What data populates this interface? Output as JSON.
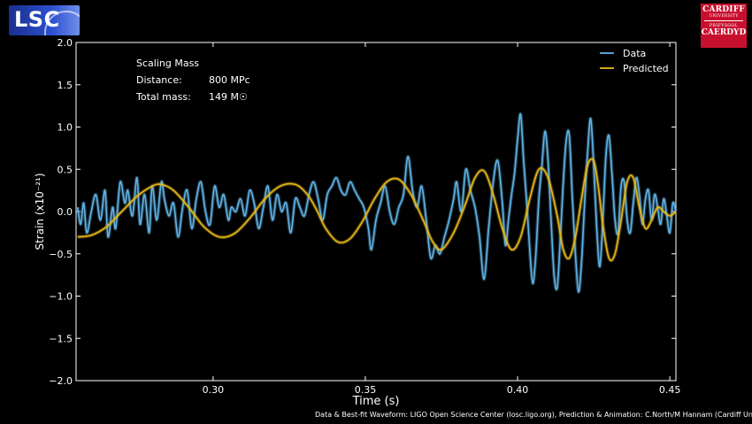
{
  "logos": {
    "lsc_text": "LSC",
    "cardiff_line1": "CARDIFF",
    "cardiff_line2": "UNIVERSITY",
    "cardiff_line3": "PRIFYSGOL",
    "cardiff_line4": "CAERDYD"
  },
  "annotation": {
    "title": "Scaling Mass",
    "distance_label": "Distance:",
    "distance_value": "800 MPc",
    "mass_label": "Total mass:",
    "mass_value": "149 M☉"
  },
  "credit": "Data & Best-fit Waveform: LIGO Open Science Center (losc.ligo.org), Prediction & Animation: C.North/M Hannam (Cardiff University)",
  "chart_data": {
    "type": "line",
    "xlabel": "Time (s)",
    "ylabel": "Strain (x10⁻²¹)",
    "xlim": [
      0.255,
      0.452
    ],
    "ylim": [
      -2.0,
      2.0
    ],
    "xticks": [
      0.3,
      0.35,
      0.4,
      0.45
    ],
    "xtick_labels": [
      "0.30",
      "0.35",
      "0.40",
      "0.45"
    ],
    "yticks": [
      2.0,
      1.5,
      1.0,
      0.5,
      0.0,
      -0.5,
      -1.0,
      -1.5,
      -2.0
    ],
    "ytick_labels": [
      "2.0",
      "1.5",
      "1.0",
      "0.5",
      "0.0",
      "−0.5",
      "−1.0",
      "−1.5",
      "−2.0"
    ],
    "grid": false,
    "legend_position": "top-right",
    "colors": {
      "data": "#5fb3e6",
      "predicted": "#e6b817"
    },
    "series": [
      {
        "name": "Data",
        "x": [
          0.2555,
          0.2565,
          0.2575,
          0.2585,
          0.26,
          0.2615,
          0.263,
          0.2645,
          0.2655,
          0.267,
          0.268,
          0.2695,
          0.271,
          0.272,
          0.2735,
          0.275,
          0.276,
          0.2775,
          0.279,
          0.28,
          0.2815,
          0.283,
          0.284,
          0.2855,
          0.287,
          0.2885,
          0.29,
          0.2915,
          0.293,
          0.2945,
          0.296,
          0.2975,
          0.299,
          0.3005,
          0.302,
          0.3035,
          0.305,
          0.306,
          0.3075,
          0.309,
          0.3105,
          0.312,
          0.3135,
          0.315,
          0.3165,
          0.318,
          0.3195,
          0.321,
          0.3225,
          0.324,
          0.3255,
          0.327,
          0.3285,
          0.33,
          0.3315,
          0.333,
          0.3345,
          0.336,
          0.3375,
          0.339,
          0.3405,
          0.342,
          0.3435,
          0.345,
          0.3465,
          0.348,
          0.3495,
          0.351,
          0.352,
          0.3535,
          0.355,
          0.3565,
          0.358,
          0.3595,
          0.361,
          0.3625,
          0.364,
          0.3655,
          0.367,
          0.3685,
          0.37,
          0.3715,
          0.373,
          0.3745,
          0.376,
          0.3775,
          0.379,
          0.38,
          0.3815,
          0.383,
          0.3845,
          0.386,
          0.3875,
          0.389,
          0.3905,
          0.392,
          0.3935,
          0.395,
          0.396,
          0.397,
          0.398,
          0.399,
          0.4,
          0.401,
          0.402,
          0.403,
          0.404,
          0.405,
          0.406,
          0.407,
          0.408,
          0.409,
          0.41,
          0.411,
          0.412,
          0.413,
          0.414,
          0.415,
          0.416,
          0.417,
          0.418,
          0.419,
          0.42,
          0.421,
          0.422,
          0.423,
          0.424,
          0.425,
          0.426,
          0.427,
          0.428,
          0.429,
          0.43,
          0.431,
          0.432,
          0.433,
          0.434,
          0.435,
          0.436,
          0.437,
          0.438,
          0.439,
          0.44,
          0.441,
          0.442,
          0.443,
          0.444,
          0.445,
          0.446,
          0.447,
          0.448,
          0.449,
          0.45,
          0.451,
          0.452
        ],
        "y": [
          0.05,
          -0.15,
          0.1,
          -0.25,
          0.0,
          0.2,
          -0.1,
          0.25,
          -0.3,
          0.05,
          -0.2,
          0.35,
          0.1,
          0.25,
          -0.05,
          0.4,
          -0.15,
          0.2,
          -0.25,
          0.3,
          -0.1,
          0.35,
          0.15,
          -0.05,
          0.1,
          -0.3,
          0.05,
          0.25,
          -0.2,
          0.15,
          0.35,
          0.0,
          -0.15,
          0.3,
          0.05,
          0.2,
          -0.1,
          0.05,
          0.0,
          0.15,
          -0.05,
          0.25,
          0.1,
          -0.2,
          0.05,
          0.3,
          -0.1,
          0.2,
          0.0,
          0.1,
          -0.25,
          0.15,
          0.05,
          -0.05,
          0.2,
          0.35,
          0.15,
          -0.1,
          0.2,
          0.3,
          0.4,
          0.25,
          0.2,
          0.35,
          0.25,
          0.15,
          0.05,
          -0.2,
          -0.45,
          -0.1,
          0.1,
          0.3,
          0.0,
          -0.15,
          0.05,
          0.2,
          0.65,
          0.25,
          0.05,
          0.3,
          -0.1,
          -0.55,
          -0.4,
          -0.5,
          -0.3,
          -0.1,
          0.15,
          0.35,
          0.0,
          0.5,
          0.25,
          0.05,
          -0.3,
          -0.8,
          -0.2,
          0.35,
          0.6,
          0.1,
          -0.4,
          -0.1,
          0.2,
          0.45,
          0.85,
          1.15,
          0.6,
          0.1,
          -0.45,
          -0.85,
          -0.5,
          0.15,
          0.55,
          0.95,
          0.6,
          -0.1,
          -0.75,
          -0.9,
          -0.35,
          0.35,
          0.85,
          0.9,
          0.15,
          -0.5,
          -0.95,
          -0.6,
          0.1,
          0.7,
          1.1,
          0.55,
          -0.2,
          -0.65,
          -0.1,
          0.65,
          0.9,
          0.45,
          -0.1,
          -0.25,
          0.3,
          0.35,
          -0.1,
          -0.25,
          0.1,
          0.4,
          0.2,
          -0.15,
          0.15,
          0.25,
          -0.1,
          0.2,
          0.05,
          -0.15,
          0.15,
          -0.05,
          -0.25,
          0.1,
          0.0
        ]
      },
      {
        "name": "Predicted",
        "x": [
          0.2555,
          0.26,
          0.265,
          0.27,
          0.275,
          0.28,
          0.283,
          0.287,
          0.292,
          0.297,
          0.302,
          0.307,
          0.312,
          0.317,
          0.322,
          0.327,
          0.331,
          0.334,
          0.337,
          0.341,
          0.345,
          0.349,
          0.353,
          0.357,
          0.361,
          0.365,
          0.369,
          0.372,
          0.375,
          0.379,
          0.383,
          0.386,
          0.389,
          0.392,
          0.395,
          0.398,
          0.401,
          0.404,
          0.407,
          0.41,
          0.413,
          0.415,
          0.417,
          0.419,
          0.421,
          0.423,
          0.425,
          0.4265,
          0.428,
          0.43,
          0.432,
          0.434,
          0.436,
          0.438,
          0.44,
          0.442,
          0.444,
          0.446,
          0.448,
          0.45,
          0.452
        ],
        "y": [
          -0.3,
          -0.28,
          -0.18,
          0.0,
          0.18,
          0.3,
          0.32,
          0.25,
          0.05,
          -0.18,
          -0.3,
          -0.26,
          -0.08,
          0.15,
          0.3,
          0.32,
          0.2,
          0.02,
          -0.2,
          -0.36,
          -0.32,
          -0.12,
          0.15,
          0.35,
          0.38,
          0.2,
          -0.1,
          -0.35,
          -0.45,
          -0.25,
          0.1,
          0.4,
          0.48,
          0.2,
          -0.2,
          -0.45,
          -0.3,
          0.15,
          0.5,
          0.4,
          -0.05,
          -0.45,
          -0.55,
          -0.3,
          0.15,
          0.55,
          0.6,
          0.3,
          -0.15,
          -0.55,
          -0.5,
          -0.1,
          0.35,
          0.4,
          0.05,
          -0.2,
          -0.1,
          0.05,
          0.0,
          -0.05,
          0.0
        ]
      }
    ]
  }
}
